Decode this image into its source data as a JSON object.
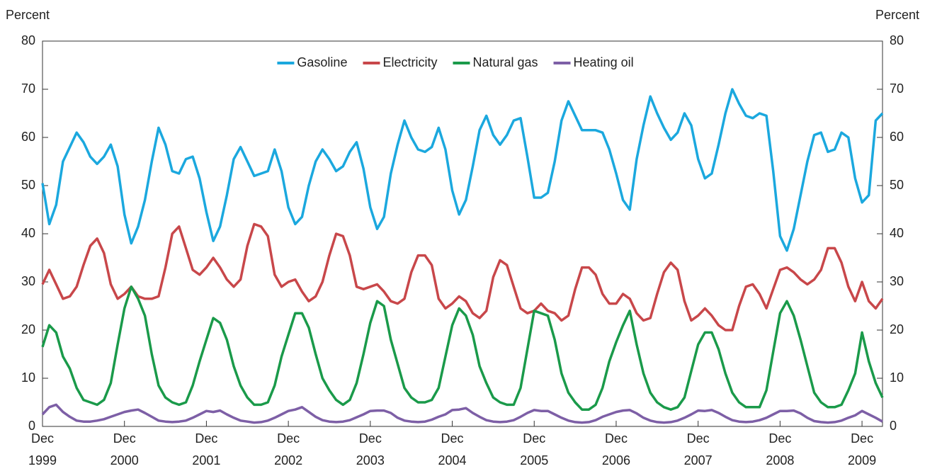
{
  "chart_data": {
    "type": "line",
    "ylabel": "Percent",
    "y2label": "Percent",
    "x": [
      "1999-12",
      "2000-01",
      "2000-02",
      "2000-03",
      "2000-04",
      "2000-05",
      "2000-06",
      "2000-07",
      "2000-08",
      "2000-09",
      "2000-10",
      "2000-11",
      "2000-12",
      "2001-01",
      "2001-02",
      "2001-03",
      "2001-04",
      "2001-05",
      "2001-06",
      "2001-07",
      "2001-08",
      "2001-09",
      "2001-10",
      "2001-11",
      "2001-12",
      "2002-01",
      "2002-02",
      "2002-03",
      "2002-04",
      "2002-05",
      "2002-06",
      "2002-07",
      "2002-08",
      "2002-09",
      "2002-10",
      "2002-11",
      "2002-12",
      "2003-01",
      "2003-02",
      "2003-03",
      "2003-04",
      "2003-05",
      "2003-06",
      "2003-07",
      "2003-08",
      "2003-09",
      "2003-10",
      "2003-11",
      "2003-12",
      "2004-01",
      "2004-02",
      "2004-03",
      "2004-04",
      "2004-05",
      "2004-06",
      "2004-07",
      "2004-08",
      "2004-09",
      "2004-10",
      "2004-11",
      "2004-12",
      "2005-01",
      "2005-02",
      "2005-03",
      "2005-04",
      "2005-05",
      "2005-06",
      "2005-07",
      "2005-08",
      "2005-09",
      "2005-10",
      "2005-11",
      "2005-12",
      "2006-01",
      "2006-02",
      "2006-03",
      "2006-04",
      "2006-05",
      "2006-06",
      "2006-07",
      "2006-08",
      "2006-09",
      "2006-10",
      "2006-11",
      "2006-12",
      "2007-01",
      "2007-02",
      "2007-03",
      "2007-04",
      "2007-05",
      "2007-06",
      "2007-07",
      "2007-08",
      "2007-09",
      "2007-10",
      "2007-11",
      "2007-12",
      "2008-01",
      "2008-02",
      "2008-03",
      "2008-04",
      "2008-05",
      "2008-06",
      "2008-07",
      "2008-08",
      "2008-09",
      "2008-10",
      "2008-11",
      "2008-12",
      "2009-01",
      "2009-02",
      "2009-03",
      "2009-04",
      "2009-05",
      "2009-06",
      "2009-07",
      "2009-08",
      "2009-09",
      "2009-10",
      "2009-11",
      "2009-12",
      "2010-01",
      "2010-02",
      "2010-03"
    ],
    "xticks": [
      {
        "value": "1999-12",
        "label": "Dec 1999"
      },
      {
        "value": "2000-12",
        "label": "Dec 2000"
      },
      {
        "value": "2001-12",
        "label": "Dec 2001"
      },
      {
        "value": "2002-12",
        "label": "Dec 2002"
      },
      {
        "value": "2003-12",
        "label": "Dec 2003"
      },
      {
        "value": "2004-12",
        "label": "Dec 2004"
      },
      {
        "value": "2005-12",
        "label": "Dec 2005"
      },
      {
        "value": "2006-12",
        "label": "Dec 2006"
      },
      {
        "value": "2007-12",
        "label": "Dec 2007"
      },
      {
        "value": "2008-12",
        "label": "Dec 2008"
      },
      {
        "value": "2009-12",
        "label": "Dec 2009"
      }
    ],
    "ylim": [
      0,
      80
    ],
    "yticks": [
      0,
      10,
      20,
      30,
      40,
      50,
      60,
      70,
      80
    ],
    "y2lim": [
      0,
      80
    ],
    "y2ticks": [
      0,
      10,
      20,
      30,
      40,
      50,
      60,
      70,
      80
    ],
    "legend": "upper center",
    "series": [
      {
        "name": "Gasoline",
        "color": "#1ba8de",
        "values": [
          50.5,
          42,
          46,
          55,
          58,
          61,
          59,
          56,
          54.5,
          56,
          58.5,
          54,
          44,
          38,
          41.5,
          47,
          55,
          62,
          58.5,
          53,
          52.5,
          55.5,
          56,
          51.5,
          44.5,
          38.5,
          41.5,
          48,
          55.5,
          58,
          55,
          52,
          52.5,
          53,
          57.5,
          53,
          45.5,
          42,
          43.5,
          50,
          55,
          57.5,
          55.5,
          53,
          54,
          57,
          59,
          53.5,
          45.5,
          41,
          43.5,
          52.5,
          58.5,
          63.5,
          60,
          57.5,
          57,
          58,
          62,
          57.5,
          49,
          44,
          47,
          54,
          61.5,
          64.5,
          60.5,
          58.5,
          60.5,
          63.5,
          64,
          56,
          47.5,
          47.5,
          48.5,
          55,
          63.5,
          67.5,
          64.5,
          61.5,
          61.5,
          61.5,
          61,
          57.5,
          52.5,
          47,
          45,
          55.5,
          62.5,
          68.5,
          65,
          62,
          59.5,
          61,
          65,
          62.5,
          55.5,
          51.5,
          52.5,
          58.5,
          65,
          70,
          67,
          64.5,
          64,
          65,
          64.5,
          53,
          39.5,
          36.5,
          41,
          48,
          55,
          60.5,
          61,
          57,
          57.5,
          61,
          60,
          51.5,
          46.5,
          48,
          63.5,
          65
        ]
      },
      {
        "name": "Electricity",
        "color": "#c8474a",
        "values": [
          29.5,
          32.5,
          29.5,
          26.5,
          27,
          29,
          33.5,
          37.5,
          39,
          36,
          29.5,
          26.5,
          27.5,
          29,
          27,
          26.5,
          26.5,
          27,
          33,
          40,
          41.5,
          37,
          32.5,
          31.5,
          33,
          35,
          33,
          30.5,
          29,
          30.5,
          37.5,
          42,
          41.5,
          39.5,
          31.5,
          29,
          30,
          30.5,
          28,
          26,
          27,
          30,
          35.5,
          40,
          39.5,
          35.5,
          29,
          28.5,
          29,
          29.5,
          28,
          26,
          25.5,
          26.5,
          32,
          35.5,
          35.5,
          33.5,
          26.5,
          24.5,
          25.5,
          27,
          26,
          23.5,
          22.5,
          24,
          31,
          34.5,
          33.5,
          29,
          24.5,
          23.5,
          24,
          25.5,
          24,
          23.5,
          22,
          23,
          28.5,
          33,
          33,
          31.5,
          27.5,
          25.5,
          25.5,
          27.5,
          26.5,
          23.5,
          22,
          22.5,
          27.5,
          32,
          34,
          32.5,
          26,
          22,
          23,
          24.5,
          23,
          21,
          20,
          20,
          25,
          29,
          29.5,
          27.5,
          24.5,
          28.5,
          32.5,
          33,
          32,
          30.5,
          29.5,
          30.5,
          32.5,
          37,
          37,
          34,
          29,
          26,
          30,
          26,
          24.5,
          26.5
        ]
      },
      {
        "name": "Natural gas",
        "color": "#1a9a4a",
        "values": [
          16.5,
          21,
          19.5,
          14.5,
          12,
          8,
          5.5,
          5,
          4.5,
          5.5,
          9,
          17,
          24.5,
          29,
          26.5,
          23,
          15,
          8.5,
          6,
          5,
          4.5,
          5,
          8.5,
          13.5,
          18,
          22.5,
          21.5,
          18,
          12.5,
          8.5,
          6,
          4.5,
          4.5,
          5,
          8.5,
          14.5,
          19,
          23.5,
          23.5,
          20.5,
          15,
          10,
          7.5,
          5.5,
          4.5,
          5.5,
          9,
          15,
          21.5,
          26,
          25,
          18,
          13,
          8,
          6,
          5,
          5,
          5.5,
          8,
          14.5,
          21,
          24.5,
          23,
          19,
          12.5,
          9,
          6,
          5,
          4.5,
          4.5,
          8,
          16,
          24,
          23.5,
          23,
          18,
          11,
          7,
          5,
          3.5,
          3.5,
          4.5,
          8,
          13.5,
          17.5,
          21,
          24,
          17,
          11,
          7,
          5,
          4,
          3.5,
          4,
          6,
          11.5,
          17,
          19.5,
          19.5,
          16,
          11,
          7,
          5,
          4,
          4,
          4,
          7.5,
          15.5,
          23.5,
          26,
          23,
          18,
          12.5,
          7,
          5,
          4,
          4,
          4.5,
          7.5,
          11,
          19.5,
          13.5,
          9,
          6
        ]
      },
      {
        "name": "Heating oil",
        "color": "#7d5fa6",
        "values": [
          2.5,
          4,
          4.5,
          3,
          2,
          1.2,
          1,
          1,
          1.2,
          1.5,
          2,
          2.5,
          3,
          3.3,
          3.5,
          2.8,
          2,
          1.2,
          1,
          0.9,
          1,
          1.2,
          1.8,
          2.5,
          3.2,
          3,
          3.3,
          2.5,
          1.8,
          1.2,
          1,
          0.8,
          0.9,
          1.2,
          1.8,
          2.5,
          3.2,
          3.5,
          4,
          3,
          2,
          1.3,
          1,
          0.9,
          1,
          1.3,
          1.9,
          2.5,
          3.2,
          3.3,
          3.3,
          2.8,
          1.8,
          1.2,
          1,
          0.9,
          1,
          1.4,
          2,
          2.5,
          3.4,
          3.5,
          3.8,
          2.8,
          2,
          1.3,
          1,
          0.9,
          1,
          1.3,
          2,
          2.8,
          3.4,
          3.2,
          3.2,
          2.5,
          1.8,
          1.2,
          0.9,
          0.8,
          0.9,
          1.3,
          2,
          2.5,
          3,
          3.3,
          3.4,
          2.7,
          1.8,
          1.2,
          0.9,
          0.8,
          0.9,
          1.2,
          1.8,
          2.5,
          3.3,
          3.2,
          3.4,
          2.8,
          2,
          1.3,
          1,
          0.9,
          1,
          1.3,
          1.8,
          2.5,
          3.2,
          3.2,
          3.3,
          2.7,
          1.8,
          1.1,
          0.9,
          0.8,
          0.9,
          1.2,
          1.8,
          2.3,
          3.2,
          2.5,
          1.8,
          1
        ]
      }
    ]
  }
}
